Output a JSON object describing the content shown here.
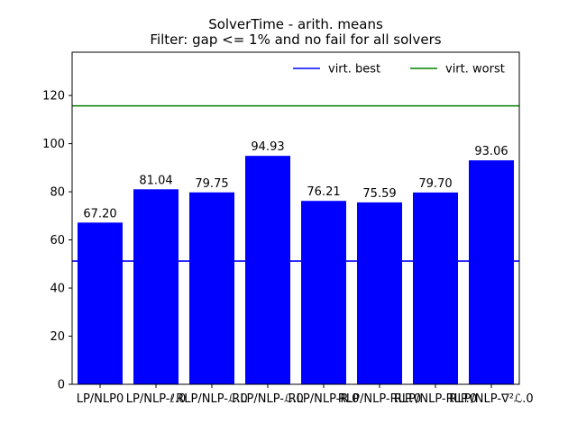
{
  "chart_data": {
    "type": "bar",
    "title": "SolverTime - arith. means",
    "subtitle": "Filter: gap <= 1% and no fail for all solvers",
    "xlabel": "",
    "ylabel": "",
    "categories": [
      "LP/NLP0",
      "LP/NLP-ℓ.0",
      "RLP/NLP-ℒ.0",
      "RLP/NLP-ℒ.0",
      "RLP/NLP-R.0",
      "RLP/NLP-RLP.0",
      "RLP/NLP-RLP.0",
      "RLP/NLP-∇²ℒ.0"
    ],
    "values": [
      67.2,
      81.04,
      79.75,
      94.93,
      76.21,
      75.59,
      79.7,
      93.06
    ],
    "value_labels": [
      "67.20",
      "81.04",
      "79.75",
      "94.93",
      "76.21",
      "75.59",
      "79.70",
      "93.06"
    ],
    "bar_color": "#0000ff",
    "ylim": [
      0,
      138
    ],
    "yticks": [
      0,
      20,
      40,
      60,
      80,
      100,
      120
    ],
    "ref_lines": [
      {
        "name": "virt. best",
        "value": 51.2,
        "color": "#0000ff"
      },
      {
        "name": "virt. worst",
        "value": 115.7,
        "color": "#008000"
      }
    ],
    "legend_position": "top-right",
    "grid": false
  }
}
